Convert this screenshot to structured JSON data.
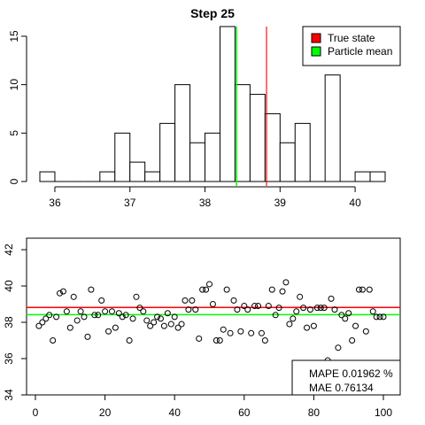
{
  "colors": {
    "true_state": "#ff0000",
    "particle_mean": "#00ff00",
    "bar_fill": "#ffffff",
    "stroke": "#000000"
  },
  "chart_data": [
    {
      "type": "bar",
      "title": "Step 25",
      "xlabel": "",
      "ylabel": "",
      "xlim": [
        35.8,
        40.4
      ],
      "ylim": [
        0,
        16
      ],
      "bin_edges": [
        35.8,
        36.0,
        36.2,
        36.4,
        36.6,
        36.8,
        37.0,
        37.2,
        37.4,
        37.6,
        37.8,
        38.0,
        38.2,
        38.4,
        38.6,
        38.8,
        39.0,
        39.2,
        39.4,
        39.6,
        39.8,
        40.0,
        40.2,
        40.4
      ],
      "counts": [
        1,
        0,
        0,
        0,
        1,
        5,
        2,
        1,
        6,
        10,
        4,
        5,
        16,
        10,
        9,
        7,
        4,
        6,
        0,
        11,
        0,
        1,
        1
      ],
      "x_ticks": [
        36,
        37,
        38,
        39,
        40
      ],
      "y_ticks": [
        0,
        5,
        10,
        15
      ],
      "true_state": 38.82,
      "particle_mean": 38.42,
      "legend": {
        "position": "top-right",
        "entries": [
          "True state",
          "Particle mean"
        ]
      },
      "grid": false
    },
    {
      "type": "scatter",
      "title": "",
      "xlabel": "",
      "ylabel": "",
      "xlim": [
        0,
        100
      ],
      "ylim": [
        34,
        42
      ],
      "x_ticks": [
        0,
        20,
        40,
        60,
        80,
        100
      ],
      "y_ticks": [
        34,
        36,
        38,
        40,
        42
      ],
      "true_state": 38.82,
      "particle_mean": 38.42,
      "points": [
        [
          1,
          37.8
        ],
        [
          2,
          38.0
        ],
        [
          3,
          38.2
        ],
        [
          4,
          38.4
        ],
        [
          5,
          37.0
        ],
        [
          6,
          38.3
        ],
        [
          7,
          39.6
        ],
        [
          8,
          39.7
        ],
        [
          9,
          38.6
        ],
        [
          10,
          37.7
        ],
        [
          11,
          39.4
        ],
        [
          12,
          38.1
        ],
        [
          13,
          38.6
        ],
        [
          14,
          38.3
        ],
        [
          15,
          37.2
        ],
        [
          16,
          39.8
        ],
        [
          17,
          38.4
        ],
        [
          18,
          38.4
        ],
        [
          19,
          39.2
        ],
        [
          20,
          38.6
        ],
        [
          21,
          37.5
        ],
        [
          22,
          38.6
        ],
        [
          23,
          37.7
        ],
        [
          24,
          38.5
        ],
        [
          25,
          38.3
        ],
        [
          26,
          38.4
        ],
        [
          27,
          37.0
        ],
        [
          28,
          38.2
        ],
        [
          29,
          39.4
        ],
        [
          30,
          38.8
        ],
        [
          31,
          38.6
        ],
        [
          32,
          38.1
        ],
        [
          33,
          37.8
        ],
        [
          34,
          38.0
        ],
        [
          35,
          38.3
        ],
        [
          36,
          38.2
        ],
        [
          37,
          37.8
        ],
        [
          38,
          38.5
        ],
        [
          39,
          37.9
        ],
        [
          40,
          38.3
        ],
        [
          41,
          37.7
        ],
        [
          42,
          37.9
        ],
        [
          43,
          39.2
        ],
        [
          44,
          38.7
        ],
        [
          45,
          39.2
        ],
        [
          46,
          38.7
        ],
        [
          47,
          37.1
        ],
        [
          48,
          39.8
        ],
        [
          49,
          39.8
        ],
        [
          50,
          40.1
        ],
        [
          51,
          39.0
        ],
        [
          52,
          37.0
        ],
        [
          53,
          37.0
        ],
        [
          54,
          37.6
        ],
        [
          55,
          39.8
        ],
        [
          56,
          37.4
        ],
        [
          57,
          39.2
        ],
        [
          58,
          38.7
        ],
        [
          59,
          37.5
        ],
        [
          60,
          38.9
        ],
        [
          61,
          38.7
        ],
        [
          62,
          37.4
        ],
        [
          63,
          38.9
        ],
        [
          64,
          38.9
        ],
        [
          65,
          37.4
        ],
        [
          66,
          37.0
        ],
        [
          67,
          38.9
        ],
        [
          68,
          39.8
        ],
        [
          69,
          38.4
        ],
        [
          70,
          38.8
        ],
        [
          71,
          39.7
        ],
        [
          72,
          40.2
        ],
        [
          73,
          37.9
        ],
        [
          74,
          38.2
        ],
        [
          75,
          38.6
        ],
        [
          76,
          39.4
        ],
        [
          77,
          38.8
        ],
        [
          78,
          37.7
        ],
        [
          79,
          38.7
        ],
        [
          80,
          37.8
        ],
        [
          81,
          38.8
        ],
        [
          82,
          38.8
        ],
        [
          83,
          38.8
        ],
        [
          84,
          35.9
        ],
        [
          85,
          39.3
        ],
        [
          86,
          38.7
        ],
        [
          87,
          36.6
        ],
        [
          88,
          38.4
        ],
        [
          89,
          38.2
        ],
        [
          90,
          38.5
        ],
        [
          91,
          37.0
        ],
        [
          92,
          37.8
        ],
        [
          93,
          39.8
        ],
        [
          94,
          39.8
        ],
        [
          95,
          37.5
        ],
        [
          96,
          39.8
        ],
        [
          97,
          38.6
        ],
        [
          98,
          38.3
        ],
        [
          99,
          38.3
        ],
        [
          100,
          38.3
        ]
      ],
      "annotation_lines": [
        "MAPE 0.01962 %",
        "MAE 0.76134"
      ],
      "annotation_position": "bottom-right",
      "grid": false
    }
  ]
}
